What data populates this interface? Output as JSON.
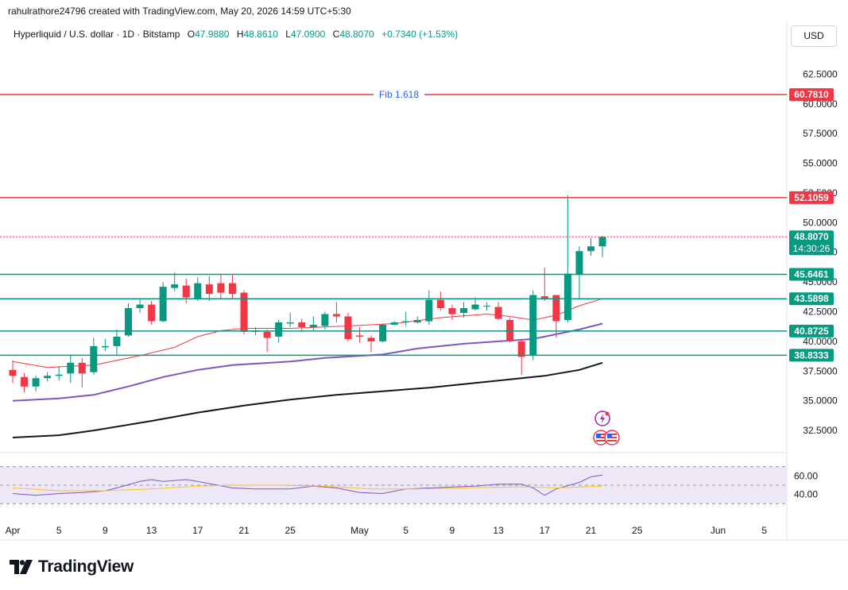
{
  "header": {
    "credit": "rahulrathore24796 created with TradingView.com, May 20, 2026 14:59 UTC+5:30"
  },
  "legend": {
    "symbol": "Hyperliquid / U.S. dollar · 1D · Bitstamp",
    "o_label": "O",
    "o_value": "47.9880",
    "h_label": "H",
    "h_value": "48.8610",
    "l_label": "L",
    "l_value": "47.0900",
    "c_label": "C",
    "c_value": "48.8070",
    "change": "+0.7340 (+1.53%)"
  },
  "currency_button": "USD",
  "footer": {
    "brand": "TradingView"
  },
  "colors": {
    "up": "#089981",
    "down": "#f23645",
    "support": "#089981",
    "resistance": "#f23645",
    "fib": "#2962ff",
    "ema20": "#f23645",
    "ema50": "#7e57c2",
    "ema200": "#131722",
    "rsi": "#7e57c2",
    "rsi_ma": "#fbc02d"
  },
  "chart_data": [
    {
      "type": "candlestick",
      "title": "Hyperliquid / U.S. dollar · 1D · Bitstamp",
      "y_axis_labels": [
        "62.5000",
        "60.0000",
        "57.5000",
        "55.0000",
        "52.5000",
        "50.0000",
        "47.5000",
        "45.0000",
        "42.5000",
        "40.0000",
        "37.5000",
        "35.0000",
        "32.5000"
      ],
      "y_ticks": [
        62.5,
        60,
        57.5,
        55,
        52.5,
        50,
        47.5,
        45,
        42.5,
        40,
        37.5,
        35,
        32.5
      ],
      "ylim": [
        30.9,
        64.6
      ],
      "x_labels": [
        {
          "label": "Apr",
          "day": 1
        },
        {
          "label": "5",
          "day": 5
        },
        {
          "label": "9",
          "day": 9
        },
        {
          "label": "13",
          "day": 13
        },
        {
          "label": "17",
          "day": 17
        },
        {
          "label": "21",
          "day": 21
        },
        {
          "label": "25",
          "day": 25
        },
        {
          "label": "May",
          "day": 31
        },
        {
          "label": "5",
          "day": 35
        },
        {
          "label": "9",
          "day": 39
        },
        {
          "label": "13",
          "day": 43
        },
        {
          "label": "17",
          "day": 47
        },
        {
          "label": "21",
          "day": 51
        },
        {
          "label": "25",
          "day": 55
        },
        {
          "label": "Jun",
          "day": 62
        },
        {
          "label": "5",
          "day": 66
        }
      ],
      "candles": [
        [
          37.6,
          37.1,
          38.4,
          36.5
        ],
        [
          37.0,
          36.2,
          37.3,
          35.7
        ],
        [
          36.2,
          36.9,
          37.1,
          35.8
        ],
        [
          36.9,
          37.1,
          37.4,
          36.6
        ],
        [
          37.1,
          37.2,
          37.9,
          36.7
        ],
        [
          37.3,
          38.2,
          38.9,
          36.5
        ],
        [
          38.2,
          37.3,
          38.6,
          36.1
        ],
        [
          37.4,
          39.6,
          40.3,
          37.2
        ],
        [
          39.5,
          39.6,
          40.2,
          39.2
        ],
        [
          39.6,
          40.4,
          41.0,
          38.9
        ],
        [
          40.5,
          42.8,
          43.2,
          40.4
        ],
        [
          42.8,
          43.1,
          43.6,
          42.4
        ],
        [
          43.1,
          41.7,
          43.4,
          41.4
        ],
        [
          41.7,
          44.6,
          45.0,
          41.6
        ],
        [
          44.5,
          44.8,
          45.8,
          44.2
        ],
        [
          44.7,
          43.7,
          45.3,
          43.2
        ],
        [
          43.6,
          44.9,
          45.4,
          43.4
        ],
        [
          44.8,
          44.0,
          45.5,
          43.4
        ],
        [
          44.9,
          44.1,
          45.6,
          43.5
        ],
        [
          44.9,
          44.0,
          45.6,
          43.6
        ],
        [
          44.1,
          40.8,
          44.3,
          40.6
        ],
        [
          40.9,
          40.8,
          41.2,
          40.5
        ],
        [
          40.8,
          40.3,
          41.0,
          39.1
        ],
        [
          40.4,
          41.6,
          41.8,
          39.9
        ],
        [
          41.5,
          41.6,
          42.4,
          41.2
        ],
        [
          41.6,
          41.2,
          41.9,
          40.8
        ],
        [
          41.2,
          41.4,
          42.1,
          40.9
        ],
        [
          41.3,
          42.3,
          42.5,
          41.0
        ],
        [
          42.3,
          42.1,
          43.3,
          41.6
        ],
        [
          42.1,
          40.2,
          42.4,
          40.0
        ],
        [
          40.5,
          40.4,
          41.2,
          39.9
        ],
        [
          40.3,
          40.0,
          40.5,
          39.1
        ],
        [
          40.0,
          41.4,
          41.5,
          39.9
        ],
        [
          41.4,
          41.6,
          41.7,
          41.4
        ],
        [
          41.6,
          41.7,
          42.5,
          41.3
        ],
        [
          41.6,
          41.8,
          42.1,
          41.5
        ],
        [
          41.7,
          43.5,
          44.3,
          41.4
        ],
        [
          43.5,
          42.8,
          44.2,
          42.6
        ],
        [
          42.8,
          42.3,
          43.1,
          41.8
        ],
        [
          42.4,
          42.8,
          43.3,
          42.0
        ],
        [
          42.7,
          43.1,
          43.7,
          42.6
        ],
        [
          43.0,
          43.0,
          43.3,
          42.6
        ],
        [
          42.9,
          41.9,
          43.3,
          41.8
        ],
        [
          41.8,
          40.0,
          42.0,
          39.9
        ],
        [
          40.0,
          38.7,
          40.1,
          37.2
        ],
        [
          38.8,
          43.9,
          44.3,
          38.4
        ],
        [
          43.8,
          43.6,
          46.2,
          43.4
        ],
        [
          43.9,
          41.7,
          43.9,
          40.3
        ],
        [
          41.8,
          45.7,
          52.3,
          41.6
        ],
        [
          45.6,
          47.6,
          48.0,
          43.6
        ],
        [
          47.6,
          48.0,
          48.7,
          47.2
        ],
        [
          48.0,
          48.8,
          48.9,
          47.1
        ]
      ],
      "moving_averages": [
        {
          "name": "ema20",
          "values": [
            [
              1,
              38.3
            ],
            [
              4,
              37.8
            ],
            [
              8,
              38.0
            ],
            [
              12,
              38.8
            ],
            [
              15,
              39.5
            ],
            [
              17,
              40.4
            ],
            [
              19,
              40.9
            ],
            [
              21,
              41.1
            ],
            [
              25,
              41.1
            ],
            [
              30,
              41.3
            ],
            [
              34,
              41.5
            ],
            [
              38,
              42.0
            ],
            [
              42,
              42.3
            ],
            [
              44,
              42.1
            ],
            [
              46,
              41.8
            ],
            [
              48,
              42.2
            ],
            [
              50,
              43.0
            ],
            [
              52,
              43.6
            ]
          ]
        },
        {
          "name": "ema50",
          "values": [
            [
              1,
              35.0
            ],
            [
              5,
              35.2
            ],
            [
              8,
              35.5
            ],
            [
              11,
              36.2
            ],
            [
              14,
              37.0
            ],
            [
              17,
              37.6
            ],
            [
              20,
              38.0
            ],
            [
              25,
              38.3
            ],
            [
              28,
              38.6
            ],
            [
              33,
              38.9
            ],
            [
              36,
              39.4
            ],
            [
              40,
              39.8
            ],
            [
              43,
              40.0
            ],
            [
              46,
              40.2
            ],
            [
              48,
              40.6
            ],
            [
              50,
              41.0
            ],
            [
              52,
              41.5
            ]
          ]
        },
        {
          "name": "ema200",
          "values": [
            [
              1,
              31.9
            ],
            [
              5,
              32.1
            ],
            [
              8,
              32.5
            ],
            [
              13,
              33.3
            ],
            [
              17,
              34.0
            ],
            [
              21,
              34.6
            ],
            [
              25,
              35.1
            ],
            [
              29,
              35.5
            ],
            [
              33,
              35.8
            ],
            [
              37,
              36.1
            ],
            [
              41,
              36.5
            ],
            [
              44,
              36.8
            ],
            [
              47,
              37.1
            ],
            [
              50,
              37.6
            ],
            [
              52,
              38.2
            ]
          ]
        }
      ],
      "horizontal_levels": [
        {
          "name": "Fib 1.618",
          "value": 60.781,
          "label": "60.7810",
          "kind": "resistance"
        },
        {
          "name": "",
          "value": 52.1059,
          "label": "52.1059",
          "kind": "resistance"
        },
        {
          "name": "",
          "value": 48.807,
          "label": "",
          "kind": "price-dotted"
        },
        {
          "name": "",
          "value": 45.6461,
          "label": "45.6461",
          "kind": "support"
        },
        {
          "name": "",
          "value": 43.5898,
          "label": "43.5898",
          "kind": "support"
        },
        {
          "name": "",
          "value": 40.8725,
          "label": "40.8725",
          "kind": "support"
        },
        {
          "name": "",
          "value": 38.8333,
          "label": "38.8333",
          "kind": "support"
        }
      ],
      "current_price": {
        "value": 48.807,
        "label": "48.8070",
        "countdown": "14:30:26"
      },
      "fib_label": "Fib 1.618"
    },
    {
      "type": "line",
      "title": "",
      "y_axis_labels": [
        "60.00",
        "40.00"
      ],
      "y_ticks": [
        60,
        40
      ],
      "ylim": [
        20,
        80
      ],
      "band": [
        70,
        30
      ],
      "series": [
        {
          "values": [
            [
              1,
              41
            ],
            [
              3,
              39
            ],
            [
              5,
              41
            ],
            [
              7,
              42
            ],
            [
              9,
              44
            ],
            [
              10,
              47
            ],
            [
              12,
              54
            ],
            [
              13,
              56
            ],
            [
              14,
              54
            ],
            [
              16,
              56
            ],
            [
              17,
              54
            ],
            [
              20,
              47
            ],
            [
              22,
              46
            ],
            [
              25,
              46
            ],
            [
              27,
              49
            ],
            [
              29,
              47
            ],
            [
              31,
              42
            ],
            [
              33,
              41
            ],
            [
              35,
              46
            ],
            [
              37,
              47
            ],
            [
              39,
              48
            ],
            [
              41,
              49
            ],
            [
              43,
              51
            ],
            [
              45,
              51
            ],
            [
              46,
              47
            ],
            [
              47,
              39
            ],
            [
              48,
              46
            ],
            [
              50,
              53
            ],
            [
              51,
              59
            ],
            [
              52,
              61
            ]
          ]
        },
        {
          "values": [
            [
              1,
              47
            ],
            [
              5,
              44
            ],
            [
              9,
              44
            ],
            [
              13,
              46
            ],
            [
              17,
              49
            ],
            [
              20,
              50
            ],
            [
              24,
              50
            ],
            [
              28,
              49
            ],
            [
              32,
              46
            ],
            [
              36,
              46
            ],
            [
              40,
              47
            ],
            [
              44,
              48
            ],
            [
              46,
              48
            ],
            [
              48,
              47
            ],
            [
              50,
              48
            ],
            [
              52,
              49
            ]
          ]
        }
      ]
    }
  ]
}
